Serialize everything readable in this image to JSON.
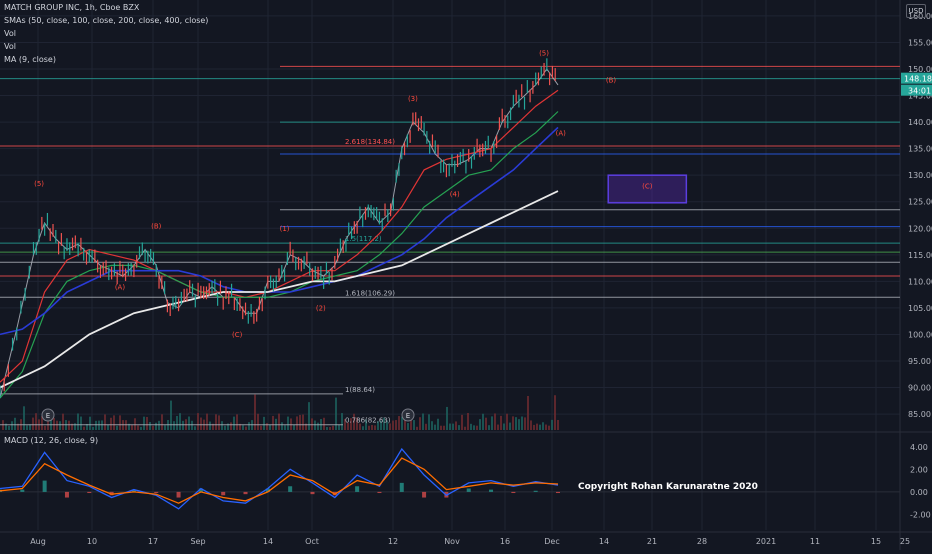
{
  "legend": {
    "title": "MATCH GROUP INC, 1h, Cboe BZX",
    "smas": "SMAs (50, close, 100, close, 200, close, 400, close)",
    "vol1": "Vol",
    "vol2": "Vol",
    "ma": "MA (9, close)",
    "macd": "MACD (12, 26, close, 9)",
    "currency_button": "USD"
  },
  "copyright": "Copyright Rohan Karunaratne 2020",
  "colors": {
    "background": "#131722",
    "grid": "#1f2433",
    "axis_text": "#b2b5be",
    "price_line": "#b2b5be",
    "sma50": "#e03535",
    "sma100": "#26a152",
    "sma200": "#2a3bd6",
    "sma400": "#e8e8e8",
    "wave_label": "#ff4a3d",
    "macd": "#2962ff",
    "signal": "#ff6d00",
    "current_price_box": "#26a69a"
  },
  "chart_data": {
    "type": "line",
    "title": "MATCH GROUP INC, 1h, Cboe BZX",
    "x_ticks": [
      "Aug",
      "10",
      "17",
      "Sep",
      "14",
      "Oct",
      "12",
      "Nov",
      "16",
      "Dec",
      "14",
      "21",
      "28",
      "2021",
      "11",
      "15",
      "25"
    ],
    "y_ticks": [
      85,
      90,
      95,
      100,
      105,
      110,
      115,
      120,
      125,
      130,
      135,
      140,
      145,
      150,
      155,
      160
    ],
    "ylim": [
      82,
      163
    ],
    "current_price": "148.18",
    "countdown": "34:01",
    "series": [
      {
        "name": "Price",
        "x": [
          0,
          3,
          6,
          8,
          10,
          12,
          14,
          16,
          18,
          20,
          22,
          24,
          26,
          28,
          30,
          32,
          34,
          36,
          38,
          40,
          42,
          44,
          46,
          48,
          50,
          52,
          54,
          56,
          58,
          60,
          62,
          64,
          66,
          68,
          70,
          72,
          74,
          76,
          78,
          80,
          82,
          84,
          86,
          88,
          90,
          92,
          94,
          96,
          98,
          100
        ],
        "values": [
          88,
          101,
          115,
          121,
          118,
          116,
          117,
          115,
          113,
          112,
          111,
          113,
          116,
          113,
          106,
          105,
          108,
          107,
          109,
          107,
          107,
          104,
          104,
          110,
          110,
          115,
          114,
          112,
          111,
          113,
          118,
          121,
          124,
          121,
          123,
          135,
          140,
          138,
          134,
          132,
          132,
          133,
          135,
          135,
          140,
          143,
          145,
          147,
          150,
          147
        ]
      },
      {
        "name": "SMA 50",
        "x": [
          0,
          4,
          8,
          12,
          16,
          20,
          24,
          28,
          32,
          36,
          40,
          44,
          48,
          52,
          56,
          60,
          64,
          68,
          72,
          76,
          80,
          84,
          88,
          92,
          96,
          100
        ],
        "values": [
          91,
          95,
          108,
          114,
          116,
          115,
          114,
          112,
          110,
          108,
          108,
          107,
          108,
          110,
          112,
          112,
          115,
          119,
          124,
          131,
          133,
          134,
          135,
          139,
          143,
          146
        ]
      },
      {
        "name": "SMA 100",
        "x": [
          0,
          4,
          8,
          12,
          16,
          20,
          24,
          28,
          32,
          36,
          40,
          44,
          48,
          52,
          56,
          60,
          64,
          68,
          72,
          76,
          80,
          84,
          88,
          92,
          96,
          100
        ],
        "values": [
          88,
          93,
          104,
          110,
          112,
          113,
          113,
          112,
          110,
          108,
          107,
          107,
          107,
          108,
          110,
          111,
          112,
          115,
          119,
          124,
          127,
          130,
          131,
          135,
          138,
          142
        ]
      },
      {
        "name": "SMA 200",
        "x": [
          0,
          4,
          8,
          12,
          16,
          20,
          24,
          28,
          32,
          36,
          40,
          44,
          48,
          52,
          56,
          60,
          64,
          68,
          72,
          76,
          80,
          84,
          88,
          92,
          96,
          100
        ],
        "values": [
          100,
          101,
          104,
          108,
          110,
          112,
          112,
          112,
          112,
          111,
          109,
          108,
          108,
          108,
          109,
          110,
          111,
          113,
          115,
          118,
          122,
          125,
          128,
          131,
          135,
          139
        ]
      },
      {
        "name": "SMA 400",
        "x": [
          0,
          4,
          8,
          12,
          16,
          20,
          24,
          28,
          32,
          36,
          40,
          44,
          48,
          52,
          56,
          60,
          64,
          68,
          72,
          76,
          80,
          84,
          88,
          92,
          96,
          100
        ],
        "values": [
          90,
          92,
          94,
          97,
          100,
          102,
          104,
          105,
          106,
          107,
          108,
          108,
          108,
          109,
          110,
          110,
          111,
          112,
          113,
          115,
          117,
          119,
          121,
          123,
          125,
          127
        ]
      }
    ],
    "levels": [
      {
        "price": 150.5,
        "label": "",
        "color": "#ff5252"
      },
      {
        "price": 148.2,
        "label": "",
        "color": "#26a69a"
      },
      {
        "price": 140.0,
        "label": "",
        "color": "#26a69a"
      },
      {
        "price": 135.5,
        "label": "2.618(134.84)",
        "color": "#ff5252"
      },
      {
        "price": 134.0,
        "label": "",
        "color": "#2962ff"
      },
      {
        "price": 123.5,
        "label": "",
        "color": "#b2b5be"
      },
      {
        "price": 120.3,
        "label": "",
        "color": "#2962ff"
      },
      {
        "price": 117.2,
        "label": "1.5(117.2)",
        "color": "#26a69a"
      },
      {
        "price": 115.5,
        "label": "",
        "color": "#4caf50"
      },
      {
        "price": 113.6,
        "label": "",
        "color": "#b2b5be"
      },
      {
        "price": 111.0,
        "label": "",
        "color": "#ff5252"
      },
      {
        "price": 107.0,
        "label": "1.618(106.29)",
        "color": "#b2b5be"
      },
      {
        "price": 88.8,
        "label": "1(88.64)",
        "color": "#b2b5be"
      },
      {
        "price": 83.0,
        "label": "0.786(82.63)",
        "color": "#b2b5be"
      }
    ],
    "wave_labels": [
      {
        "text": "(5)",
        "x": 7,
        "price": 128
      },
      {
        "text": "(A)",
        "x": 21.5,
        "price": 108.5
      },
      {
        "text": "(B)",
        "x": 28,
        "price": 120
      },
      {
        "text": "(C)",
        "x": 42.5,
        "price": 99.5
      },
      {
        "text": "(1)",
        "x": 51,
        "price": 119.5
      },
      {
        "text": "(2)",
        "x": 57.5,
        "price": 104.5
      },
      {
        "text": "(3)",
        "x": 74,
        "price": 144
      },
      {
        "text": "(4)",
        "x": 81.5,
        "price": 126
      },
      {
        "text": "(5)",
        "x": 97.5,
        "price": 152.5
      },
      {
        "text": "(A)",
        "x": 100.5,
        "price": 137.5
      },
      {
        "text": "(B)",
        "x": 109.5,
        "price": 147.5
      },
      {
        "text": "(C)",
        "x": 116,
        "price": 127.5
      }
    ],
    "target_box": {
      "price_top": 130,
      "price_bottom": 124.8,
      "x_start": 109,
      "x_end": 123
    },
    "macd": {
      "ylim": [
        -3.2,
        4.6
      ],
      "y_ticks": [
        -2.0,
        0.0,
        2.0,
        4.0
      ],
      "x": [
        0,
        4,
        8,
        12,
        16,
        20,
        24,
        28,
        32,
        36,
        40,
        44,
        48,
        52,
        56,
        60,
        64,
        68,
        72,
        76,
        80,
        84,
        88,
        92,
        96,
        100
      ],
      "macd": [
        0.3,
        0.5,
        3.5,
        1.0,
        0.5,
        -0.5,
        0.2,
        -0.3,
        -1.5,
        0.3,
        -0.8,
        -1.0,
        0.3,
        2.0,
        0.8,
        -0.5,
        1.5,
        0.5,
        3.8,
        1.5,
        -0.3,
        0.8,
        1.0,
        0.5,
        0.9,
        0.6
      ],
      "signal": [
        0.1,
        0.3,
        2.5,
        1.5,
        0.6,
        -0.2,
        0.0,
        -0.2,
        -1.0,
        0.0,
        -0.5,
        -0.8,
        0.0,
        1.5,
        1.0,
        -0.2,
        1.0,
        0.6,
        3.0,
        2.0,
        0.2,
        0.5,
        0.8,
        0.6,
        0.8,
        0.7
      ]
    }
  }
}
